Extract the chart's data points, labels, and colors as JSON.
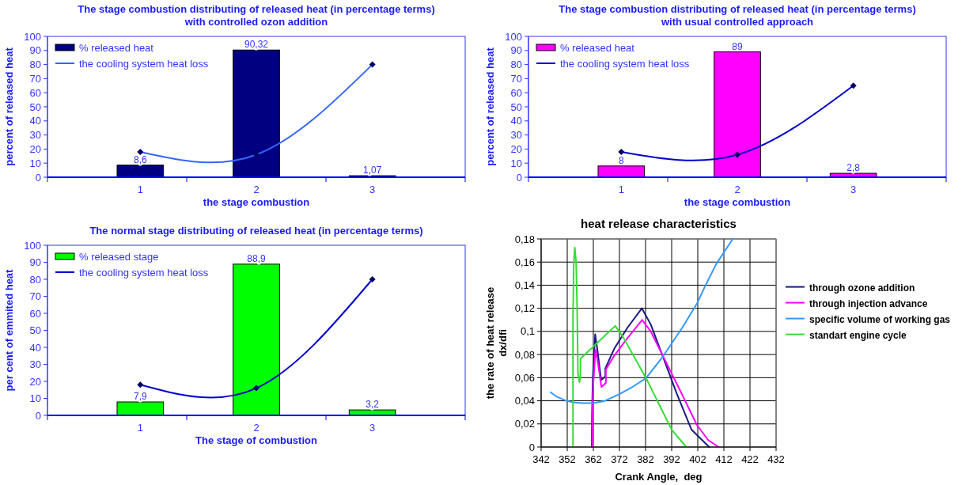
{
  "chart_data": [
    {
      "type": "bar",
      "title": "The stage combustion distributing of released heat (in percentage terms)\nwith controlled ozon addition",
      "xlabel": "the stage combustion",
      "ylabel": "percent of released heat",
      "categories": [
        "1",
        "2",
        "3"
      ],
      "ylim": [
        0,
        100
      ],
      "yticks": [
        0,
        10,
        20,
        30,
        40,
        50,
        60,
        70,
        80,
        90,
        100
      ],
      "grid": false,
      "legend": "top left",
      "marker": "diamond",
      "series": [
        {
          "name": "% released heat",
          "color": "#000080",
          "values": [
            8.6,
            90.32,
            1.07
          ],
          "value_labels": [
            "8,6",
            "90,32",
            "1,07"
          ]
        },
        {
          "type": "line",
          "name": "the cooling system heat loss",
          "color": "#3366ff",
          "values": [
            18,
            16,
            80
          ]
        }
      ]
    },
    {
      "type": "bar",
      "title": "The stage combustion distributing of released heat (in percentage terms)\nwith usual controlled approach",
      "xlabel": "the stage combustion",
      "ylabel": "percent of released heat",
      "categories": [
        "1",
        "2",
        "3"
      ],
      "ylim": [
        0,
        100
      ],
      "yticks": [
        0,
        10,
        20,
        30,
        40,
        50,
        60,
        70,
        80,
        90,
        100
      ],
      "grid": false,
      "legend": "top left",
      "marker": "diamond",
      "series": [
        {
          "name": "% released heat",
          "color": "#ff00ff",
          "values": [
            8,
            89,
            2.8
          ],
          "value_labels": [
            "8",
            "89",
            "2,8"
          ]
        },
        {
          "type": "line",
          "name": "the cooling system heat loss",
          "color": "#0000cc",
          "values": [
            18,
            16,
            65
          ]
        }
      ]
    },
    {
      "type": "bar",
      "title": "The normal stage distributing of released heat (in percentage terms)",
      "xlabel": "The stage of combustion",
      "ylabel": "per cent of emmited heat",
      "categories": [
        "1",
        "2",
        "3"
      ],
      "ylim": [
        0,
        100
      ],
      "yticks": [
        0,
        10,
        20,
        30,
        40,
        50,
        60,
        70,
        80,
        90,
        100
      ],
      "grid": false,
      "legend": "top left",
      "marker": "diamond",
      "series": [
        {
          "name": "% released stage",
          "color": "#00ff00",
          "values": [
            7.9,
            88.9,
            3.2
          ],
          "value_labels": [
            "7,9",
            "88,9",
            "3,2"
          ]
        },
        {
          "type": "line",
          "name": "the cooling system heat loss",
          "color": "#0000cc",
          "values": [
            18,
            16,
            80
          ]
        }
      ]
    },
    {
      "type": "line",
      "title": "heat release characteristics",
      "xlabel": "Crank Angle,  deg",
      "ylabel": "the rate of heat release\ndx/dfi",
      "xlim": [
        342,
        432
      ],
      "xticks": [
        342,
        352,
        362,
        372,
        382,
        392,
        402,
        412,
        422,
        432
      ],
      "ylim": [
        0,
        0.18
      ],
      "yticks": [
        0,
        {
          "value": 0.02,
          "label": "0,02"
        },
        {
          "value": 0.04,
          "label": "0,04"
        },
        {
          "value": 0.06,
          "label": "0,06"
        },
        {
          "value": 0.08,
          "label": "0,08"
        },
        {
          "value": 0.1,
          "label": "0,1"
        },
        {
          "value": 0.12,
          "label": "0,12"
        },
        {
          "value": 0.14,
          "label": "0,14"
        },
        {
          "value": 0.16,
          "label": "0,16"
        },
        {
          "value": 0.18,
          "label": "0,18"
        }
      ],
      "grid": true,
      "legend": "right",
      "series": [
        {
          "name": "through ozone addition",
          "color": "#1a1a80",
          "x": [
            361.4,
            361.5,
            361.8,
            362.7,
            363.5,
            365.0,
            366.6,
            366.6,
            370,
            375,
            380.6,
            384,
            388.6,
            394,
            399.6,
            406.4
          ],
          "values": [
            0,
            0.03,
            0.06,
            0.0975,
            0.085,
            0.058,
            0.061,
            0.068,
            0.085,
            0.103,
            0.12,
            0.106,
            0.0785,
            0.046,
            0.015,
            0
          ]
        },
        {
          "name": "through injection advance",
          "color": "#ff00ff",
          "x": [
            361.6,
            361.7,
            362.0,
            362.8,
            363.6,
            365.1,
            366.8,
            366.8,
            370,
            375,
            380.7,
            384,
            388.7,
            395,
            401.7,
            406,
            410
          ],
          "values": [
            0,
            0.03,
            0.055,
            0.084,
            0.075,
            0.052,
            0.0555,
            0.067,
            0.079,
            0.094,
            0.11,
            0.1,
            0.0785,
            0.05,
            0.019,
            0.006,
            0
          ]
        },
        {
          "name": "specific volume of working gas",
          "color": "#3399ff",
          "x": [
            345.6,
            348,
            351.8,
            355,
            357.6,
            361.9,
            366.3,
            372.1,
            377,
            382.2,
            388.7,
            396,
            401.8,
            405,
            409,
            415.4
          ],
          "values": [
            0.0474,
            0.0435,
            0.0398,
            0.0385,
            0.038,
            0.038,
            0.0398,
            0.046,
            0.052,
            0.0596,
            0.0785,
            0.103,
            0.1245,
            0.14,
            0.158,
            0.18
          ]
        },
        {
          "name": "standart engine cycle",
          "color": "#33dd33",
          "x": [
            354.2,
            354.2,
            354.5,
            354.9,
            355.4,
            355.8,
            356.1,
            356.7,
            357.0,
            357.1,
            370.4,
            373.5,
            382.2,
            392,
            397.6
          ],
          "values": [
            0,
            0.111,
            0.16,
            0.1725,
            0.16,
            0.12,
            0.064,
            0.056,
            0.06,
            0.0765,
            0.1048,
            0.0947,
            0.0596,
            0.015,
            0
          ]
        }
      ]
    }
  ]
}
